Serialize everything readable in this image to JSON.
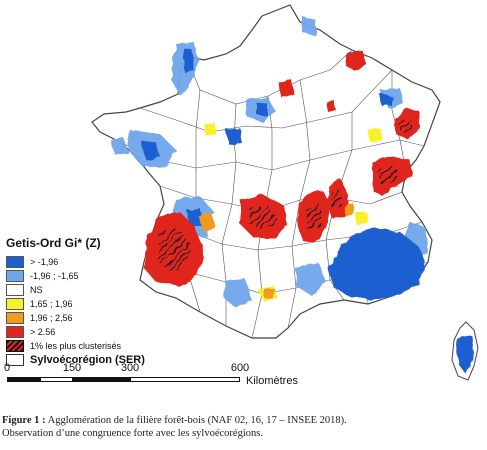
{
  "legend": {
    "title": "Getis-Ord Gi* (Z)",
    "items": [
      {
        "label": "> -1,96",
        "color": "#1e5fd0"
      },
      {
        "label": "-1,96 ; -1,65",
        "color": "#6fa6ec"
      },
      {
        "label": "NS",
        "color": "#ffffff"
      },
      {
        "label": "1,65 ; 1,96",
        "color": "#f7f02a"
      },
      {
        "label": "1,96 ; 2,56",
        "color": "#f39a1f"
      },
      {
        "label": "> 2.56",
        "color": "#e0261f"
      },
      {
        "label": "1% les plus clusterisés",
        "color": "hatch"
      },
      {
        "label": "Sylvoécorégion (SER)",
        "color": "outline"
      }
    ]
  },
  "scale": {
    "ticks": [
      "0",
      "150",
      "300",
      "600"
    ],
    "unit": "Kilomètres"
  },
  "caption": {
    "figure_label": "Figure 1 :",
    "line1": "Agglomération de la filière forêt-bois (NAF 02, 16, 17 – INSEE 2018).",
    "line2": "Observation d’une congruence forte avec les sylvoécorégions."
  },
  "colors": {
    "map_fill": "#ffffff",
    "boundary": "#444444",
    "blue_dark": "#1e5fd0",
    "blue_light": "#6fa6ec",
    "yellow": "#f7f02a",
    "orange": "#f39a1f",
    "red": "#e0261f"
  }
}
